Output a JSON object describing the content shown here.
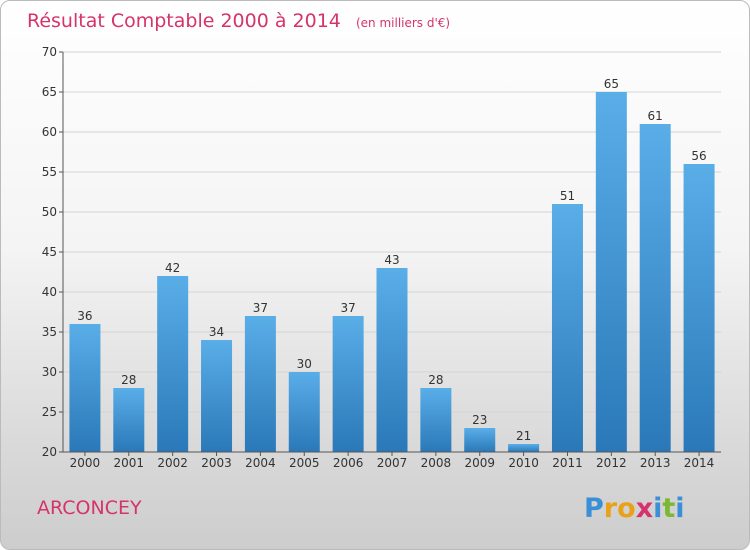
{
  "chart_data": {
    "type": "bar",
    "title": "Résultat Comptable 2000 à 2014",
    "subtitle": "(en milliers d'€)",
    "categories": [
      "2000",
      "2001",
      "2002",
      "2003",
      "2004",
      "2005",
      "2006",
      "2007",
      "2008",
      "2009",
      "2010",
      "2011",
      "2012",
      "2013",
      "2014"
    ],
    "values": [
      36,
      28,
      42,
      34,
      37,
      30,
      37,
      43,
      28,
      23,
      21,
      51,
      65,
      61,
      56
    ],
    "ylim": [
      20,
      70
    ],
    "yticks": [
      20,
      25,
      30,
      35,
      40,
      45,
      50,
      55,
      60,
      65,
      70
    ],
    "grid": true,
    "bar_color_top": "#5aaee8",
    "bar_color_bottom": "#2a78b8"
  },
  "place": "ARCONCEY",
  "logo": {
    "text": "Proxiti",
    "letter_colors": [
      "#3a8fd6",
      "#e8a21a",
      "#e8a21a",
      "#d6336c",
      "#3a8fd6",
      "#7cb832",
      "#3a8fd6"
    ]
  },
  "colors": {
    "title": "#d6336c",
    "grid": "#d4d4d4",
    "axis": "#555555"
  }
}
